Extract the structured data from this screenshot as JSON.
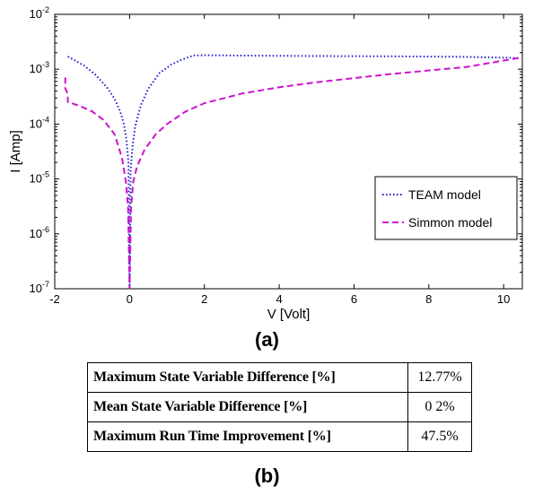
{
  "chart_data": {
    "type": "line",
    "title": "",
    "xlabel": "V [Volt]",
    "ylabel": "I [Amp]",
    "xlim": [
      -2,
      10.5
    ],
    "ylim": [
      1e-07,
      0.01
    ],
    "yscale": "log",
    "grid": false,
    "legend_position": "middle-right",
    "xticks": [
      -2,
      0,
      2,
      4,
      6,
      8,
      10
    ],
    "x_tick_labels": [
      "-2",
      "0",
      "2",
      "4",
      "6",
      "8",
      "10"
    ],
    "yticks": [
      1e-07,
      1e-06,
      1e-05,
      0.0001,
      0.001,
      0.01
    ],
    "y_tick_labels": [
      {
        "base": "10",
        "exp": "-7"
      },
      {
        "base": "10",
        "exp": "-6"
      },
      {
        "base": "10",
        "exp": "-5"
      },
      {
        "base": "10",
        "exp": "-4"
      },
      {
        "base": "10",
        "exp": "-3"
      },
      {
        "base": "10",
        "exp": "-2"
      }
    ],
    "series": [
      {
        "name": "TEAM model",
        "color": "#1a1acc",
        "style": "dotted",
        "x": [
          -1.65,
          -1.5,
          -1.2,
          -0.9,
          -0.6,
          -0.4,
          -0.25,
          -0.15,
          -0.08,
          -0.03,
          0,
          0.03,
          0.08,
          0.15,
          0.3,
          0.5,
          0.8,
          1.1,
          1.4,
          1.7,
          2.0,
          3.0,
          5.0,
          7.0,
          9.0,
          10.4
        ],
        "y": [
          0.0017,
          0.0015,
          0.00115,
          0.00078,
          0.00046,
          0.00029,
          0.00017,
          0.0001,
          5e-05,
          2e-05,
          1e-07,
          1.5e-05,
          4e-05,
          9e-05,
          0.00022,
          0.00044,
          0.00085,
          0.0012,
          0.0015,
          0.00178,
          0.0018,
          0.00177,
          0.00174,
          0.00172,
          0.00168,
          0.0016
        ]
      },
      {
        "name": "Simmon model",
        "color": "#cc14cc",
        "style": "dashed",
        "x": [
          10.4,
          9.0,
          7.0,
          5.0,
          4.0,
          3.0,
          2.0,
          1.5,
          1.0,
          0.7,
          0.4,
          0.2,
          0.1,
          0.04,
          0,
          -0.04,
          -0.1,
          -0.2,
          -0.4,
          -0.7,
          -1.0,
          -1.3,
          -1.55,
          -1.65,
          -1.65,
          -1.72,
          -1.72,
          -1.65
        ],
        "y": [
          0.0016,
          0.0011,
          0.00082,
          0.00058,
          0.00047,
          0.00036,
          0.00024,
          0.00017,
          0.0001,
          6.5e-05,
          3.4e-05,
          1.7e-05,
          9e-06,
          3e-06,
          1e-07,
          3e-06,
          9e-06,
          2.4e-05,
          6.5e-05,
          0.00012,
          0.00017,
          0.00021,
          0.00024,
          0.00025,
          0.00035,
          0.00045,
          0.00068,
          0.00068
        ]
      }
    ]
  },
  "figure": {
    "caption_a": "(a)",
    "caption_b": "(b)"
  },
  "table": {
    "rows": [
      {
        "label": "Maximum State Variable Difference [%]",
        "value": "12.77%"
      },
      {
        "label": "Mean State Variable Difference [%]",
        "value": "0 2%"
      },
      {
        "label": "Maximum Run Time Improvement [%]",
        "value": "47.5%"
      }
    ]
  }
}
